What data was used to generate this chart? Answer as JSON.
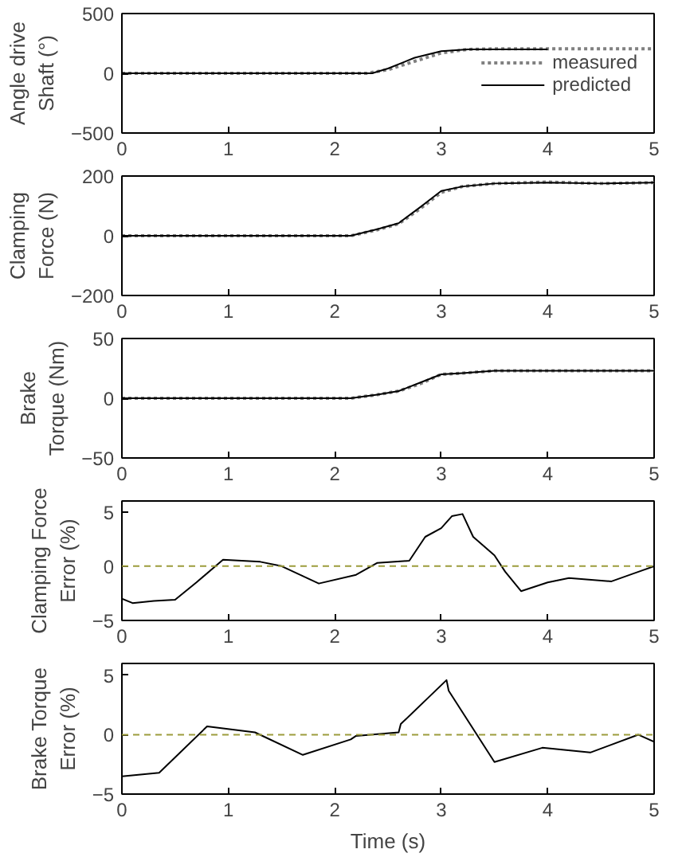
{
  "chart_data": [
    {
      "type": "line",
      "ylabel": "Angle drive\nShaft (°)",
      "xlim": [
        0,
        5
      ],
      "xticks": [
        0,
        1,
        2,
        3,
        4,
        5
      ],
      "ylim": [
        -500,
        500
      ],
      "yticks": [
        -500,
        0,
        500
      ],
      "grid": false,
      "legend": "right",
      "series": [
        {
          "name": "measured",
          "color": "#808080",
          "line_style": "dotted",
          "x": [
            0,
            1,
            2,
            2.3,
            2.5,
            2.75,
            3.0,
            3.25,
            3.5,
            4,
            5
          ],
          "values": [
            0,
            0,
            0,
            0,
            30,
            100,
            170,
            200,
            205,
            205,
            205
          ]
        },
        {
          "name": "predicted",
          "color": "#000000",
          "line_style": "solid",
          "x": [
            0,
            1,
            2,
            2.35,
            2.5,
            2.75,
            3.0,
            3.25,
            3.5,
            4
          ],
          "values": [
            0,
            0,
            0,
            0,
            40,
            130,
            185,
            200,
            200,
            200
          ]
        }
      ]
    },
    {
      "type": "line",
      "ylabel": "Clamping\nForce (N)",
      "xlim": [
        0,
        5
      ],
      "xticks": [
        0,
        1,
        2,
        3,
        4,
        5
      ],
      "ylim": [
        -200,
        200
      ],
      "yticks": [
        -200,
        0,
        200
      ],
      "grid": false,
      "legend": false,
      "series": [
        {
          "color": "#808080",
          "line_style": "dotted",
          "x": [
            0,
            1,
            2,
            2.15,
            2.4,
            2.6,
            2.8,
            3.0,
            3.2,
            3.5,
            4,
            4.5,
            5
          ],
          "values": [
            0,
            0,
            0,
            0,
            20,
            40,
            90,
            145,
            165,
            175,
            180,
            175,
            178
          ]
        },
        {
          "color": "#000000",
          "line_style": "solid",
          "x": [
            0,
            1,
            2,
            2.15,
            2.4,
            2.6,
            2.8,
            3.0,
            3.2,
            3.5,
            4,
            4.5,
            5
          ],
          "values": [
            0,
            0,
            0,
            0,
            22,
            42,
            95,
            150,
            165,
            175,
            178,
            175,
            178
          ]
        }
      ]
    },
    {
      "type": "line",
      "ylabel": "Brake\nTorque (Nm)",
      "xlim": [
        0,
        5
      ],
      "xticks": [
        0,
        1,
        2,
        3,
        4,
        5
      ],
      "ylim": [
        -50,
        50
      ],
      "yticks": [
        -50,
        0,
        50
      ],
      "grid": false,
      "legend": false,
      "series": [
        {
          "color": "#808080",
          "line_style": "dotted",
          "x": [
            0,
            1,
            2,
            2.15,
            2.4,
            2.6,
            2.8,
            3.0,
            3.2,
            3.5,
            4,
            5
          ],
          "values": [
            0,
            0,
            0,
            0,
            3,
            6,
            12,
            20,
            21,
            23,
            23,
            23
          ]
        },
        {
          "color": "#000000",
          "line_style": "solid",
          "x": [
            0,
            1,
            2,
            2.15,
            2.4,
            2.6,
            2.8,
            3.0,
            3.2,
            3.5,
            4,
            5
          ],
          "values": [
            0,
            0,
            0,
            0,
            3,
            6,
            13,
            20,
            21,
            23,
            23,
            23
          ]
        }
      ]
    },
    {
      "type": "line",
      "ylabel": "Clamping Force\nError (%)",
      "xlim": [
        0,
        5
      ],
      "xticks": [
        0,
        1,
        2,
        3,
        4,
        5
      ],
      "ylim": [
        -5,
        6
      ],
      "yticks": [
        -5,
        0,
        5
      ],
      "grid": false,
      "legend": false,
      "ref_lines": [
        {
          "axis": "y",
          "value": 0,
          "color": "#9c9c3c",
          "line_style": "dashed"
        }
      ],
      "series": [
        {
          "color": "#000000",
          "line_style": "solid",
          "x": [
            0,
            0.1,
            0.3,
            0.5,
            0.7,
            0.95,
            1.3,
            1.5,
            1.85,
            2.2,
            2.4,
            2.7,
            2.85,
            3.0,
            3.1,
            3.2,
            3.3,
            3.5,
            3.6,
            3.75,
            4.0,
            4.2,
            4.6,
            4.8,
            5
          ],
          "values": [
            -3,
            -3.4,
            -3.2,
            -3.1,
            -1.5,
            0.6,
            0.4,
            0,
            -1.6,
            -0.8,
            0.3,
            0.5,
            2.7,
            3.5,
            4.6,
            4.8,
            2.7,
            1,
            -0.5,
            -2.3,
            -1.5,
            -1.1,
            -1.4,
            -0.7,
            0
          ]
        }
      ]
    },
    {
      "type": "line",
      "ylabel": "Brake Torque\nError (%)",
      "xlabel": "Time (s)",
      "xlim": [
        0,
        5
      ],
      "xticks": [
        0,
        1,
        2,
        3,
        4,
        5
      ],
      "ylim": [
        -5,
        6
      ],
      "yticks": [
        -5,
        0,
        5
      ],
      "grid": false,
      "legend": false,
      "ref_lines": [
        {
          "axis": "y",
          "value": 0,
          "color": "#9c9c3c",
          "line_style": "dashed"
        }
      ],
      "series": [
        {
          "color": "#000000",
          "line_style": "solid",
          "x": [
            0,
            0.35,
            0.8,
            1.25,
            1.7,
            2.15,
            2.2,
            2.6,
            2.62,
            3.05,
            3.07,
            3.5,
            3.95,
            4.4,
            4.85,
            5
          ],
          "values": [
            -3.5,
            -3.2,
            0.7,
            0.2,
            -1.7,
            -0.4,
            -0.1,
            0.2,
            0.9,
            4.6,
            3.7,
            -2.3,
            -1.1,
            -1.5,
            0,
            -0.6
          ]
        }
      ]
    }
  ]
}
